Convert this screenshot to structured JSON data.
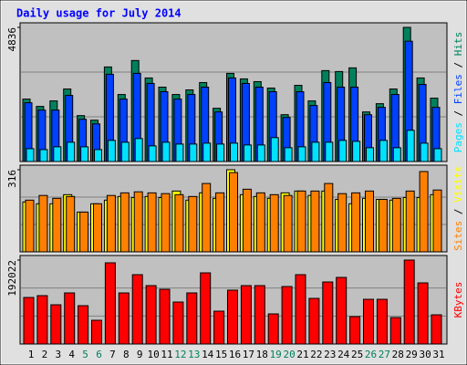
{
  "chart_data": [
    {
      "type": "bar",
      "title": "Daily usage for July 2014",
      "series": [
        {
          "name": "Hits",
          "color": "#00805c",
          "values": [
            2251,
            1986,
            2185,
            2615,
            1655,
            1490,
            3409,
            2416,
            3641,
            3012,
            2681,
            2416,
            2582,
            2847,
            1920,
            3178,
            2979,
            2880,
            2648,
            1688,
            2747,
            2185,
            3277,
            3244,
            3376,
            1787,
            2085,
            2615,
            4836,
            3012,
            2284
          ]
        },
        {
          "name": "Files",
          "color": "#0040ff",
          "values": [
            2118,
            1854,
            1854,
            2383,
            1523,
            1357,
            3145,
            2251,
            3178,
            2814,
            2516,
            2251,
            2416,
            2681,
            1787,
            3012,
            2814,
            2681,
            2516,
            1589,
            2516,
            2019,
            2847,
            2681,
            2681,
            1688,
            1953,
            2416,
            4336,
            2780,
            1953
          ]
        },
        {
          "name": "Pages",
          "color": "#00e0ff",
          "values": [
            463,
            430,
            530,
            695,
            530,
            430,
            761,
            695,
            828,
            563,
            695,
            629,
            629,
            662,
            629,
            662,
            596,
            596,
            861,
            497,
            530,
            695,
            695,
            761,
            728,
            497,
            761,
            497,
            1125,
            662,
            463
          ]
        }
      ],
      "ylim": [
        0,
        4836
      ],
      "yticks": [
        4836
      ],
      "legend_separator": " / "
    },
    {
      "type": "bar",
      "series": [
        {
          "name": "Visits",
          "color": "#ffff00",
          "values": [
            192,
            185,
            185,
            220,
            153,
            185,
            199,
            213,
            209,
            213,
            209,
            234,
            199,
            227,
            206,
            316,
            220,
            213,
            206,
            227,
            234,
            217,
            234,
            202,
            185,
            206,
            202,
            199,
            209,
            209,
            220
          ]
        },
        {
          "name": "Sites",
          "color": "#ff8000",
          "values": [
            199,
            217,
            206,
            213,
            153,
            185,
            217,
            227,
            231,
            227,
            224,
            220,
            213,
            263,
            227,
            305,
            241,
            227,
            220,
            217,
            234,
            234,
            263,
            224,
            227,
            234,
            202,
            206,
            234,
            309,
            238
          ]
        }
      ],
      "ylim": [
        0,
        316
      ],
      "yticks": [
        316
      ],
      "legend_separator": " / "
    },
    {
      "type": "bar",
      "categories": [
        "1",
        "2",
        "3",
        "4",
        "5",
        "6",
        "7",
        "8",
        "9",
        "10",
        "11",
        "12",
        "13",
        "14",
        "15",
        "16",
        "17",
        "18",
        "19",
        "20",
        "21",
        "22",
        "23",
        "24",
        "25",
        "26",
        "27",
        "28",
        "29",
        "30",
        "31"
      ],
      "category_colors": [
        "#000000",
        "#000000",
        "#000000",
        "#000000",
        "#00805c",
        "#00805c",
        "#000000",
        "#000000",
        "#000000",
        "#000000",
        "#000000",
        "#00805c",
        "#00805c",
        "#000000",
        "#000000",
        "#000000",
        "#000000",
        "#000000",
        "#00805c",
        "#00805c",
        "#000000",
        "#000000",
        "#000000",
        "#000000",
        "#000000",
        "#00805c",
        "#00805c",
        "#000000",
        "#000000",
        "#000000",
        "#000000"
      ],
      "series": [
        {
          "name": "KBytes",
          "color": "#ff0000",
          "values": [
            106437,
            110611,
            89741,
            116872,
            87654,
            54262,
            185743,
            116872,
            158612,
            133568,
            125220,
            96002,
            116872,
            162786,
            75132,
            123133,
            133568,
            133568,
            68871,
            131481,
            158612,
            104350,
            141916,
            152351,
            62610,
            102263,
            102263,
            60523,
            192022,
            139829,
            66784
          ]
        }
      ],
      "ylim": [
        0,
        192022
      ],
      "yticks": [
        192022
      ]
    }
  ]
}
